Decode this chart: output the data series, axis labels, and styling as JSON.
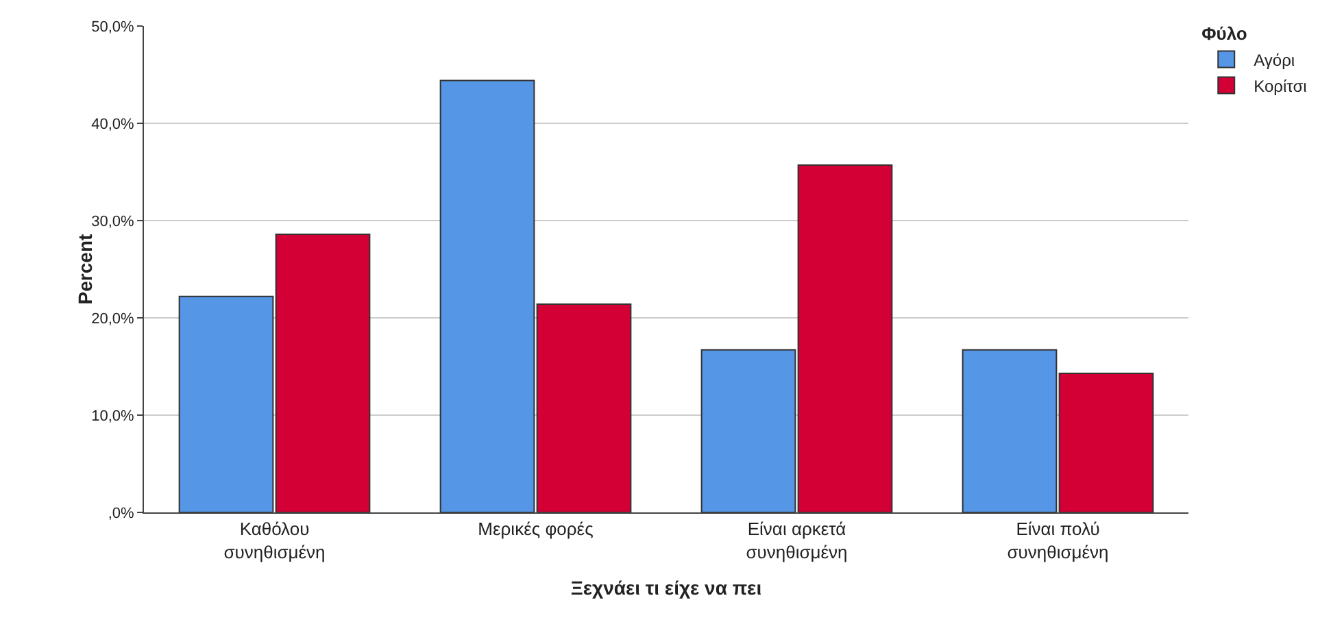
{
  "chart_data": {
    "type": "bar",
    "xlabel": "Ξεχνάει τι είχε να πει",
    "ylabel": "Percent",
    "legend_title": "Φύλο",
    "categories": [
      "Καθόλου συνηθισμένη",
      "Μερικές φορές",
      "Είναι αρκετά συνηθισμένη",
      "Είναι πολύ συνηθισμένη"
    ],
    "series": [
      {
        "name": "Αγόρι",
        "color": "#5596e6",
        "values": [
          22.2,
          44.4,
          16.7,
          16.7
        ]
      },
      {
        "name": "Κορίτσι",
        "color": "#d20035",
        "values": [
          28.6,
          21.4,
          35.7,
          14.3
        ]
      }
    ],
    "ylim": [
      0,
      50
    ],
    "yticks": [
      {
        "value": 0,
        "label": ",0%"
      },
      {
        "value": 10,
        "label": "10,0%"
      },
      {
        "value": 20,
        "label": "20,0%"
      },
      {
        "value": 30,
        "label": "30,0%"
      },
      {
        "value": 40,
        "label": "40,0%"
      },
      {
        "value": 50,
        "label": "50,0%"
      }
    ],
    "grid": "y",
    "legend": "top right"
  }
}
